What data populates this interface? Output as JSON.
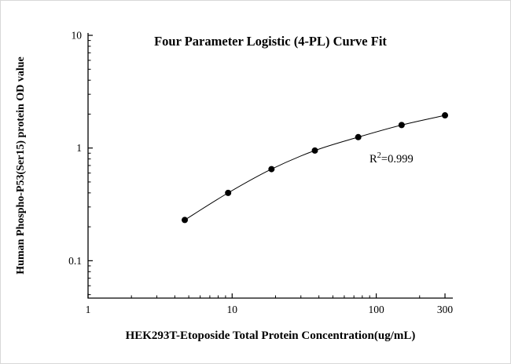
{
  "page": {
    "background": "#ffffff",
    "border_color": "#d8d8d8"
  },
  "chart_data": {
    "type": "line",
    "title": "Four Parameter Logistic (4-PL) Curve Fit",
    "xlabel": "HEK293T-Etoposide Total Protein Concentration(ug/mL)",
    "ylabel": "Human Phospho-P53(Ser15) protein OD value",
    "x_scale": "log",
    "y_scale": "log",
    "xlim": [
      1,
      340
    ],
    "ylim": [
      0.0466,
      10.5
    ],
    "x_major_ticks": [
      {
        "value": 1,
        "label": "1"
      },
      {
        "value": 10,
        "label": "10"
      },
      {
        "value": 100,
        "label": "100"
      },
      {
        "value": 300,
        "label": "300"
      }
    ],
    "y_major_ticks": [
      {
        "value": 0.1,
        "label": "0.1"
      },
      {
        "value": 1,
        "label": "1"
      },
      {
        "value": 10,
        "label": "10"
      }
    ],
    "points": [
      {
        "x": 4.69,
        "y": 0.23
      },
      {
        "x": 9.38,
        "y": 0.4
      },
      {
        "x": 18.75,
        "y": 0.65
      },
      {
        "x": 37.5,
        "y": 0.95
      },
      {
        "x": 75,
        "y": 1.25
      },
      {
        "x": 150,
        "y": 1.6
      },
      {
        "x": 300,
        "y": 1.95
      }
    ],
    "annotation": {
      "base": "R",
      "superscript": "2",
      "rest": "=0.999"
    },
    "line_color": "#000000",
    "marker_color": "#000000",
    "axis_color": "#000000",
    "grid": "off",
    "legend": "none"
  }
}
